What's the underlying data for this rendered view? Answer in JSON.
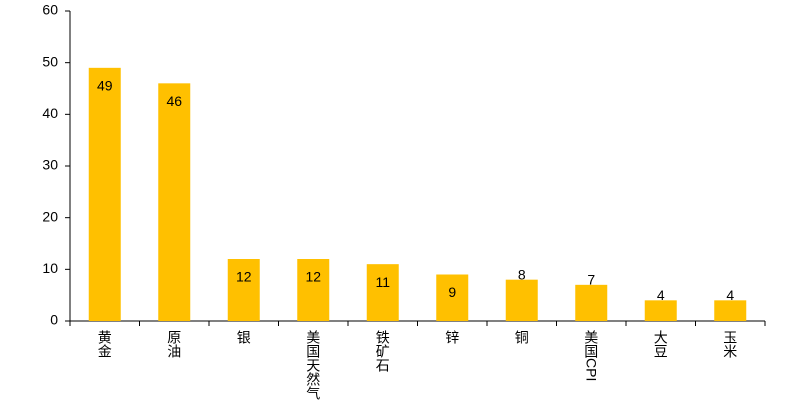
{
  "chart_data": {
    "type": "bar",
    "categories": [
      "黄金",
      "原油",
      "银",
      "美国天然气",
      "铁矿石",
      "锌",
      "铜",
      "美国CPI",
      "大豆",
      "玉米"
    ],
    "values": [
      49,
      46,
      12,
      12,
      11,
      9,
      8,
      7,
      4,
      4
    ],
    "color": "#ffc000",
    "ylim": [
      0,
      60
    ],
    "yticks": [
      0,
      10,
      20,
      30,
      40,
      50,
      60
    ],
    "grid": false
  }
}
